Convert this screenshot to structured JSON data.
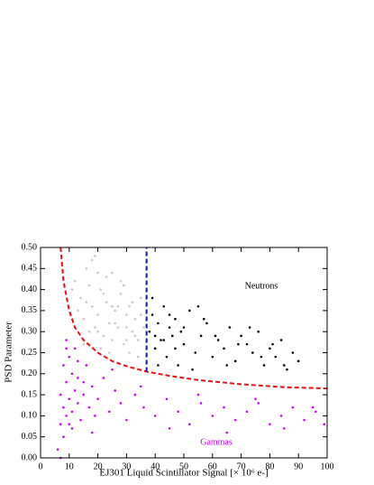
{
  "chart_data": {
    "type": "scatter",
    "xlabel": "EJ301 Liquid Scintillator Signal [× 10⁶ e-]",
    "ylabel": "PSD Parameter",
    "xlim": [
      0,
      100
    ],
    "ylim": [
      0,
      0.5
    ],
    "xticks": [
      0,
      10,
      20,
      30,
      40,
      50,
      60,
      70,
      80,
      90,
      100
    ],
    "yticks": [
      {
        "value": 0,
        "label": "0.00"
      },
      0.05,
      {
        "value": 0.1,
        "label": "0.10"
      },
      0.15,
      {
        "value": 0.2,
        "label": "0.20"
      },
      0.25,
      {
        "value": 0.3,
        "label": "0.30"
      },
      0.35,
      {
        "value": 0.4,
        "label": "0.40"
      },
      0.45,
      {
        "value": 0.5,
        "label": "0.50"
      }
    ],
    "series": [
      {
        "kind": "scatter",
        "color": "#c8c8c8",
        "x": [
          12,
          14,
          15,
          16,
          17,
          18,
          19,
          20,
          21,
          22,
          23,
          24,
          25,
          26,
          27,
          28,
          29,
          30,
          31,
          32,
          33,
          34,
          35,
          36,
          13,
          15,
          17,
          19,
          21,
          23,
          25,
          27,
          29,
          31,
          33,
          35,
          16,
          18,
          20,
          22,
          24,
          26,
          28,
          30,
          32,
          34,
          11,
          20,
          25,
          30
        ],
        "values": [
          0.42,
          0.38,
          0.33,
          0.45,
          0.3,
          0.36,
          0.48,
          0.34,
          0.4,
          0.29,
          0.37,
          0.32,
          0.44,
          0.35,
          0.31,
          0.39,
          0.27,
          0.34,
          0.36,
          0.3,
          0.33,
          0.28,
          0.38,
          0.31,
          0.35,
          0.27,
          0.41,
          0.31,
          0.26,
          0.43,
          0.28,
          0.36,
          0.41,
          0.25,
          0.29,
          0.34,
          0.37,
          0.47,
          0.3,
          0.39,
          0.25,
          0.32,
          0.42,
          0.28,
          0.37,
          0.24,
          0.4,
          0.44,
          0.36,
          0.31
        ]
      },
      {
        "kind": "scatter",
        "name": "Neutrons",
        "color": "#000000",
        "x": [
          38,
          39,
          40,
          41,
          42,
          43,
          44,
          45,
          46,
          47,
          48,
          49,
          50,
          52,
          54,
          56,
          58,
          60,
          62,
          64,
          66,
          68,
          70,
          72,
          74,
          76,
          78,
          80,
          82,
          84,
          86,
          88,
          90,
          39,
          41,
          43,
          45,
          47,
          50,
          53,
          57,
          61,
          65,
          69,
          73,
          77,
          81,
          85,
          40,
          55
        ],
        "values": [
          0.3,
          0.34,
          0.26,
          0.32,
          0.28,
          0.36,
          0.24,
          0.31,
          0.29,
          0.33,
          0.22,
          0.3,
          0.27,
          0.35,
          0.25,
          0.29,
          0.32,
          0.24,
          0.28,
          0.26,
          0.31,
          0.23,
          0.29,
          0.27,
          0.25,
          0.3,
          0.22,
          0.26,
          0.24,
          0.28,
          0.21,
          0.25,
          0.23,
          0.38,
          0.22,
          0.28,
          0.34,
          0.26,
          0.31,
          0.21,
          0.33,
          0.29,
          0.22,
          0.27,
          0.31,
          0.24,
          0.27,
          0.22,
          0.29,
          0.36
        ]
      },
      {
        "kind": "scatter",
        "name": "Gammas",
        "color": "#cc00ff",
        "x": [
          6,
          7,
          7,
          8,
          8,
          8,
          9,
          9,
          9,
          10,
          10,
          10,
          11,
          11,
          12,
          12,
          13,
          13,
          14,
          15,
          16,
          17,
          18,
          19,
          20,
          22,
          24,
          26,
          28,
          30,
          33,
          36,
          40,
          44,
          48,
          52,
          56,
          60,
          64,
          68,
          72,
          76,
          80,
          84,
          88,
          92,
          96,
          99,
          7,
          9,
          11,
          13,
          15,
          18,
          25,
          35,
          45,
          55,
          65,
          75,
          85,
          95
        ],
        "values": [
          0.02,
          0.08,
          0.15,
          0.22,
          0.12,
          0.05,
          0.18,
          0.28,
          0.1,
          0.14,
          0.24,
          0.08,
          0.2,
          0.11,
          0.16,
          0.26,
          0.13,
          0.19,
          0.09,
          0.15,
          0.22,
          0.12,
          0.17,
          0.1,
          0.14,
          0.19,
          0.11,
          0.16,
          0.13,
          0.09,
          0.15,
          0.12,
          0.1,
          0.14,
          0.11,
          0.08,
          0.13,
          0.1,
          0.12,
          0.09,
          0.11,
          0.13,
          0.08,
          0.1,
          0.12,
          0.09,
          0.11,
          0.08,
          0.0,
          0.26,
          0.07,
          0.23,
          0.18,
          0.06,
          0.21,
          0.17,
          0.07,
          0.15,
          0.06,
          0.14,
          0.07,
          0.12
        ]
      },
      {
        "kind": "line",
        "linestyle": "dashed",
        "color": "#ee1111",
        "x": [
          7,
          8,
          10,
          12,
          15,
          20,
          25,
          30,
          37,
          45,
          55,
          70,
          85,
          100
        ],
        "values": [
          0.5,
          0.42,
          0.35,
          0.31,
          0.28,
          0.25,
          0.23,
          0.218,
          0.205,
          0.195,
          0.185,
          0.175,
          0.168,
          0.165
        ]
      },
      {
        "kind": "line",
        "linestyle": "dashed",
        "color": "#1111bb",
        "x": [
          37,
          37
        ],
        "values": [
          0.205,
          0.5
        ]
      }
    ]
  }
}
